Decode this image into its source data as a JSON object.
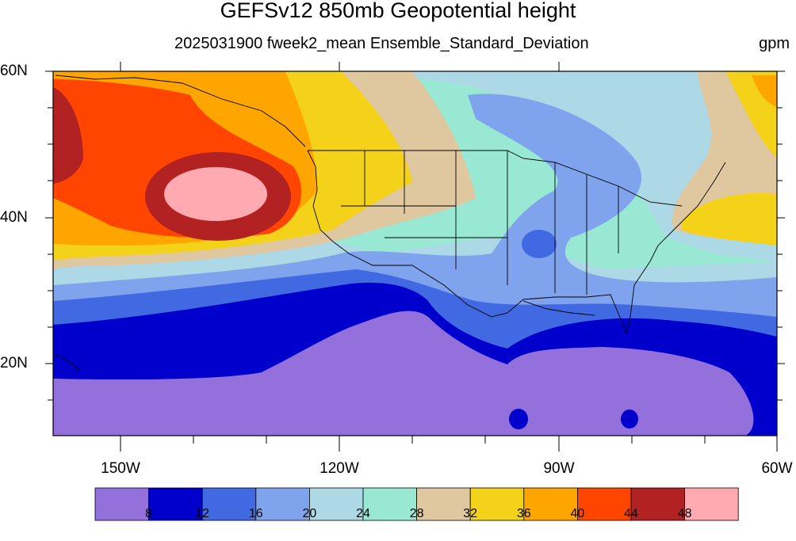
{
  "title": "GEFSv12 850mb Geopotential height",
  "subtitle": "2025031900 fweek2_mean Ensemble_Standard_Deviation",
  "units": "gpm",
  "lat_labels": [
    "60N",
    "40N",
    "20N"
  ],
  "lon_labels": [
    "150W",
    "120W",
    "90W",
    "60W"
  ],
  "colorbar": {
    "levels": [
      "8",
      "12",
      "16",
      "20",
      "24",
      "28",
      "32",
      "36",
      "40",
      "44",
      "48"
    ],
    "colors": [
      "#9370db",
      "#0000cd",
      "#4169e1",
      "#7fa3ec",
      "#add8e6",
      "#98e8d4",
      "#dfc7a0",
      "#f4d21a",
      "#ffa500",
      "#ff4500",
      "#b22222",
      "#ffaab0"
    ]
  },
  "map": {
    "projection": "cylindrical-equidistant",
    "lon_range": [
      -160,
      -60
    ],
    "lat_range": [
      10,
      60
    ],
    "field": "850mb geopotential height ensemble standard deviation"
  }
}
